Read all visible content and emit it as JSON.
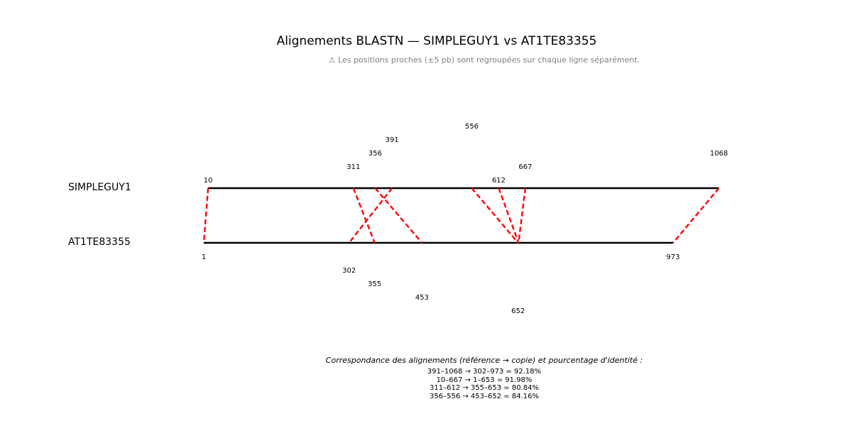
{
  "title": "Alignements BLASTN — SIMPLEGUY1 vs AT1TE83355",
  "subtitle": "⚠ Les positions proches (±5 pb) sont regroupées sur chaque ligne séparément.",
  "sequences": {
    "reference": {
      "name": "SIMPLEGUY1",
      "start": 10,
      "end": 1068
    },
    "copy": {
      "name": "AT1TE83355",
      "start": 1,
      "end": 973
    }
  },
  "line_color": "#000000",
  "link_color": "#ff0000",
  "reference_positions": [
    "10",
    "311",
    "356",
    "391",
    "556",
    "612",
    "667",
    "1068"
  ],
  "copy_positions": [
    "1",
    "302",
    "355",
    "453",
    "652",
    "973"
  ],
  "alignments": [
    {
      "ref_start": 391,
      "ref_end": 1068,
      "copy_start": 302,
      "copy_end": 973,
      "identity": 92.18
    },
    {
      "ref_start": 10,
      "ref_end": 667,
      "copy_start": 1,
      "copy_end": 653,
      "identity": 91.98
    },
    {
      "ref_start": 311,
      "ref_end": 612,
      "copy_start": 355,
      "copy_end": 653,
      "identity": 80.84
    },
    {
      "ref_start": 356,
      "ref_end": 556,
      "copy_start": 453,
      "copy_end": 652,
      "identity": 84.16
    }
  ],
  "legend": {
    "heading": "Correspondance des alignements (référence → copie) et pourcentage d'identité :",
    "lines": [
      "391–1068 → 302–973 = 92.18%",
      "10–667 → 1–653 = 91.98%",
      "311–612 → 355–653 = 80.84%",
      "356–556 → 453–652 = 84.16%"
    ]
  }
}
